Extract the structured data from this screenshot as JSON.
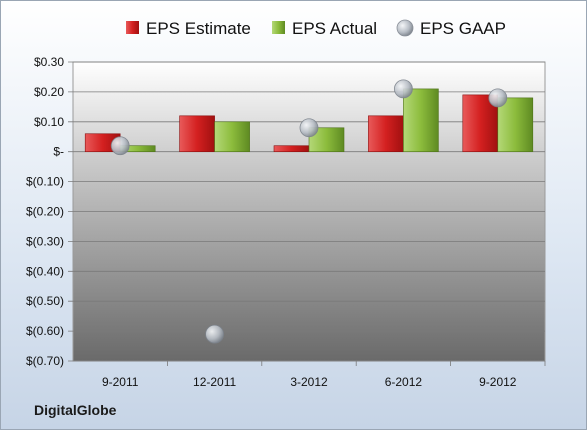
{
  "company": "DigitalGlobe",
  "colors": {
    "estimate": "#d42020",
    "actual": "#8cbc3c",
    "gaap": "#b8bec6"
  },
  "chart_data": {
    "type": "bar",
    "categories": [
      "9-2011",
      "12-2011",
      "3-2012",
      "6-2012",
      "9-2012"
    ],
    "series": [
      {
        "name": "EPS Estimate",
        "kind": "bar",
        "values": [
          0.06,
          0.12,
          0.02,
          0.12,
          0.19
        ]
      },
      {
        "name": "EPS Actual",
        "kind": "bar",
        "values": [
          0.02,
          0.1,
          0.08,
          0.21,
          0.18
        ]
      },
      {
        "name": "EPS GAAP",
        "kind": "scatter",
        "values": [
          0.02,
          -0.61,
          0.08,
          0.21,
          0.18
        ]
      }
    ],
    "y_ticks": [
      "$0.30",
      "$0.20",
      "$0.10",
      "$-",
      "$(0.10)",
      "$(0.20)",
      "$(0.30)",
      "$(0.40)",
      "$(0.50)",
      "$(0.60)",
      "$(0.70)"
    ],
    "y_tick_values": [
      0.3,
      0.2,
      0.1,
      0.0,
      -0.1,
      -0.2,
      -0.3,
      -0.4,
      -0.5,
      -0.6,
      -0.7
    ],
    "ylim": [
      -0.7,
      0.3
    ],
    "legend_position": "top",
    "grid": true
  }
}
